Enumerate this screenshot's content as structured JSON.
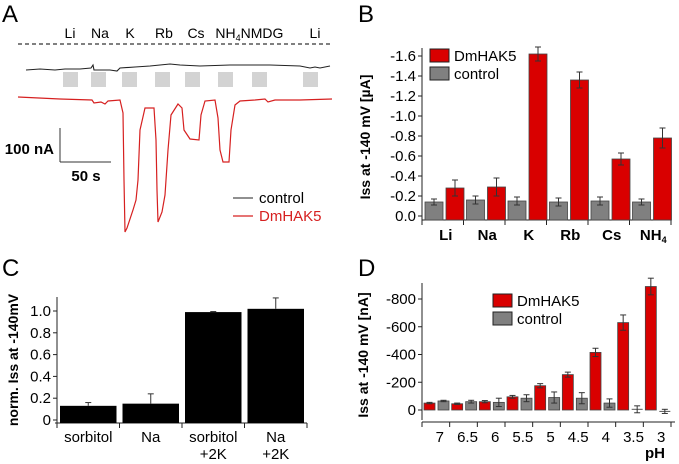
{
  "panels": {
    "A": "A",
    "B": "B",
    "C": "C",
    "D": "D"
  },
  "chart_data": [
    {
      "id": "A",
      "type": "line",
      "title": "",
      "ion_labels": [
        "Li",
        "Na",
        "K",
        "Rb",
        "Cs",
        "NH4",
        "NMDG",
        "Li"
      ],
      "scale_bar": {
        "current": "100 nA",
        "time": "50 s"
      },
      "legend": [
        {
          "name": "control",
          "color": "#000000"
        },
        {
          "name": "DmHAK5",
          "color": "#d62020"
        }
      ],
      "legend_placement": "bottom-right",
      "series": [
        {
          "name": "control",
          "description": "flat trace, no ion-induced currents"
        },
        {
          "name": "DmHAK5",
          "peak_inward_current_nA_approx": {
            "Li": -10,
            "Na": -15,
            "K": -380,
            "Rb": -370,
            "Cs": -160,
            "NH4": -230,
            "NMDG": 0,
            "Li_2": 0
          }
        }
      ]
    },
    {
      "id": "B",
      "type": "bar",
      "categories": [
        "Li",
        "Na",
        "K",
        "Rb",
        "Cs",
        "NH4"
      ],
      "series": [
        {
          "name": "control",
          "color": "#808080",
          "values": [
            -0.14,
            -0.16,
            -0.15,
            -0.14,
            -0.15,
            -0.14
          ],
          "errors": [
            0.03,
            0.04,
            0.04,
            0.04,
            0.04,
            0.03
          ]
        },
        {
          "name": "DmHAK5",
          "color": "#d90000",
          "values": [
            -0.28,
            -0.29,
            -1.62,
            -1.36,
            -0.57,
            -0.78
          ],
          "errors": [
            0.08,
            0.09,
            0.07,
            0.08,
            0.06,
            0.1
          ]
        }
      ],
      "ylabel": "Iss at -140 mV [µA]",
      "xlabel": "",
      "yticks": [
        "0.0",
        "-0.2",
        "-0.4",
        "-0.6",
        "-0.8",
        "-1.0",
        "-1.2",
        "-1.4",
        "-1.6"
      ],
      "ylim": [
        0,
        -1.68
      ],
      "legend_placement": "top-left",
      "legend": [
        "DmHAK5",
        "control"
      ]
    },
    {
      "id": "C",
      "type": "bar",
      "categories": [
        "sorbitol",
        "Na",
        "sorbitol +2K",
        "Na +2K"
      ],
      "values": [
        0.13,
        0.15,
        0.99,
        1.02
      ],
      "errors": [
        0.03,
        0.09,
        0.005,
        0.1
      ],
      "color": "#000000",
      "ylabel": "norm. Iss at -140mV",
      "xlabel": "",
      "yticks": [
        "0",
        "0.2",
        "0.4",
        "0.6",
        "0.8",
        "1.0"
      ],
      "ylim": [
        0,
        1.12
      ]
    },
    {
      "id": "D",
      "type": "bar",
      "categories": [
        "7",
        "6.5",
        "6",
        "5.5",
        "5",
        "4.5",
        "4",
        "3.5",
        "3"
      ],
      "series": [
        {
          "name": "DmHAK5",
          "color": "#d90000",
          "values": [
            -50,
            -45,
            -60,
            -95,
            -175,
            -255,
            -415,
            -630,
            -890
          ],
          "errors": [
            5,
            5,
            8,
            10,
            15,
            18,
            30,
            55,
            60
          ]
        },
        {
          "name": "control",
          "color": "#808080",
          "values": [
            -65,
            -60,
            -55,
            -85,
            -90,
            -85,
            -50,
            -5,
            10
          ],
          "errors": [
            5,
            10,
            30,
            25,
            40,
            40,
            30,
            25,
            15
          ]
        }
      ],
      "ylabel": "Iss at -140 mV [nA]",
      "xlabel": "pH",
      "yticks": [
        "0",
        "-200",
        "-400",
        "-600",
        "-800"
      ],
      "ylim": [
        30,
        -950
      ],
      "legend_placement": "top-center",
      "legend": [
        "DmHAK5",
        "control"
      ]
    }
  ]
}
